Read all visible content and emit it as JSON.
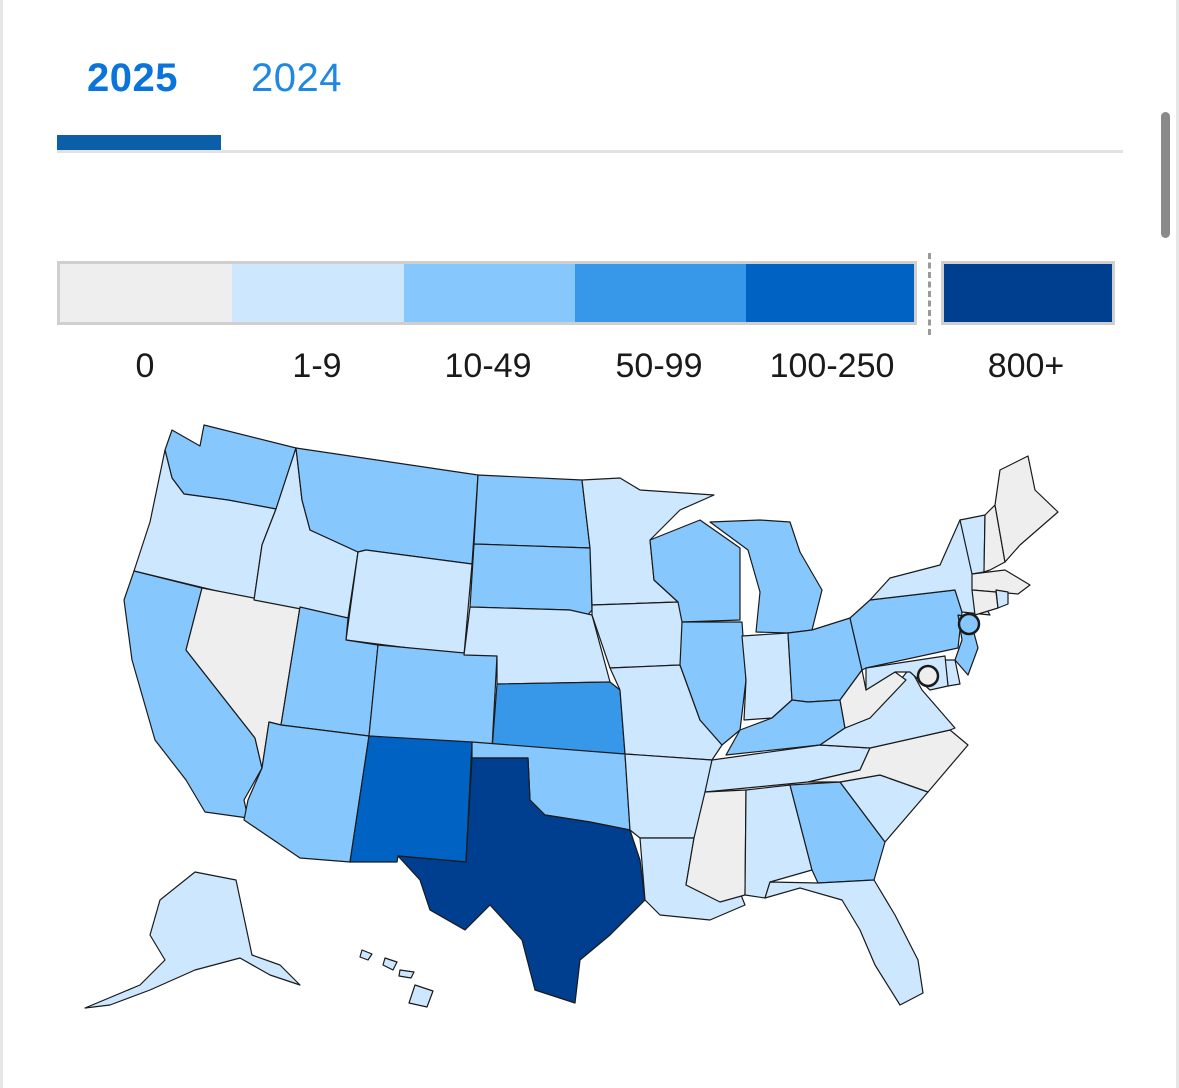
{
  "tabs": [
    {
      "label": "2025",
      "active": true
    },
    {
      "label": "2024",
      "active": false
    }
  ],
  "legend": {
    "bins": [
      {
        "label": "0",
        "color": "#eeeeee"
      },
      {
        "label": "1-9",
        "color": "#cce7fe"
      },
      {
        "label": "10-49",
        "color": "#86c7fd"
      },
      {
        "label": "50-99",
        "color": "#3798e9"
      },
      {
        "label": "100-250",
        "color": "#0063c3"
      },
      {
        "label": "800+",
        "color": "#003e8f"
      }
    ]
  },
  "map": {
    "states": {
      "WA": 2,
      "OR": 1,
      "CA": 2,
      "NV": 0,
      "ID": 1,
      "MT": 2,
      "WY": 1,
      "UT": 2,
      "AZ": 2,
      "CO": 2,
      "NM": 4,
      "ND": 2,
      "SD": 2,
      "NE": 1,
      "KS": 3,
      "OK": 2,
      "TX": 5,
      "MN": 1,
      "IA": 1,
      "MO": 1,
      "AR": 1,
      "LA": 1,
      "WI": 2,
      "IL": 2,
      "MI": 2,
      "IN": 1,
      "OH": 2,
      "KY": 2,
      "TN": 1,
      "MS": 0,
      "AL": 1,
      "GA": 2,
      "FL": 1,
      "SC": 1,
      "NC": 0,
      "VA": 1,
      "WV": 0,
      "PA": 2,
      "NY": 1,
      "VT": 1,
      "NH": 0,
      "ME": 0,
      "MA": 0,
      "CT": 0,
      "RI": 1,
      "NJ": 2,
      "DE": 1,
      "MD": 1,
      "AK": 1,
      "HI": 1
    },
    "markers": [
      {
        "name": "NYC",
        "bin": 2
      },
      {
        "name": "DC",
        "bin": 0
      }
    ]
  }
}
